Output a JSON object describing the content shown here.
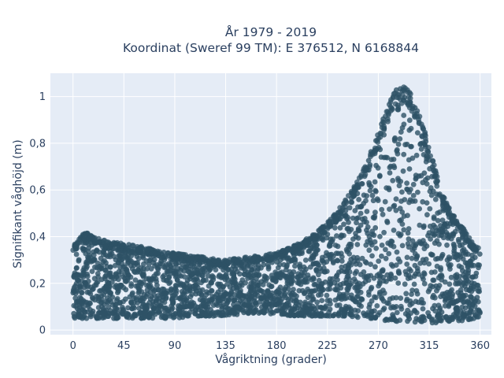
{
  "chart_data": {
    "type": "scatter",
    "title_line1": "År 1979 - 2019",
    "title_line2": "Koordinat (Sweref 99 TM): E 376512, N 6168844",
    "xlabel": "Vågriktning (grader)",
    "ylabel": "Signifikant våghöjd (m)",
    "xlim": [
      -20,
      370
    ],
    "ylim": [
      -0.02,
      1.1
    ],
    "x_ticks": [
      0,
      45,
      90,
      135,
      180,
      225,
      270,
      315,
      360
    ],
    "y_ticks": [
      0,
      0.2,
      0.4,
      0.6,
      0.8,
      1
    ],
    "y_tick_labels": [
      "0",
      "0,2",
      "0,4",
      "0,6",
      "0,8",
      "1"
    ],
    "grid": true,
    "marker_color": "#2e5266",
    "plot_background": "#e5ecf6",
    "envelope": {
      "x": [
        0,
        10,
        20,
        30,
        45,
        60,
        75,
        90,
        105,
        120,
        135,
        150,
        165,
        180,
        195,
        210,
        225,
        240,
        255,
        265,
        275,
        285,
        295,
        305,
        315,
        325,
        335,
        345,
        355,
        360
      ],
      "y_min": [
        0.05,
        0.05,
        0.05,
        0.05,
        0.05,
        0.05,
        0.05,
        0.05,
        0.06,
        0.06,
        0.06,
        0.07,
        0.07,
        0.07,
        0.06,
        0.06,
        0.06,
        0.06,
        0.05,
        0.05,
        0.04,
        0.03,
        0.03,
        0.03,
        0.03,
        0.03,
        0.04,
        0.04,
        0.05,
        0.05
      ],
      "y_max": [
        0.36,
        0.42,
        0.4,
        0.38,
        0.37,
        0.36,
        0.34,
        0.33,
        0.32,
        0.31,
        0.3,
        0.31,
        0.32,
        0.33,
        0.36,
        0.4,
        0.46,
        0.55,
        0.67,
        0.78,
        0.92,
        1.03,
        1.05,
        0.95,
        0.79,
        0.6,
        0.5,
        0.44,
        0.36,
        0.35
      ]
    }
  }
}
